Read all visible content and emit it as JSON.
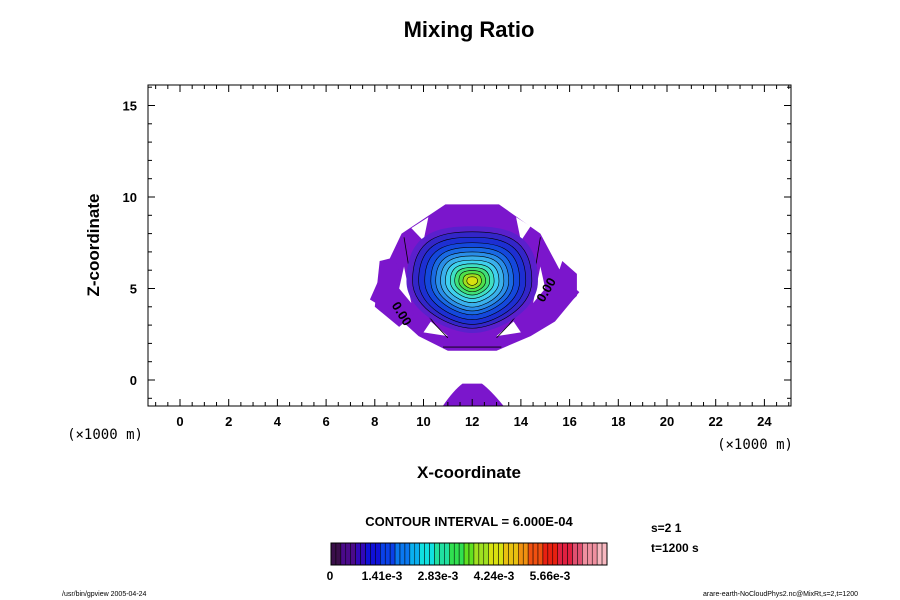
{
  "chart_data": {
    "type": "contour",
    "title": "Mixing Ratio",
    "xlabel": "X-coordinate",
    "ylabel": "Z-coordinate",
    "x_unit": "(×1000 m)",
    "y_unit": "(×1000 m)",
    "xlim": [
      -1.5,
      25
    ],
    "ylim": [
      -1.4,
      16.2
    ],
    "xticks": [
      "0",
      "2",
      "4",
      "6",
      "8",
      "10",
      "12",
      "14",
      "16",
      "18",
      "20",
      "22",
      "24"
    ],
    "yticks": [
      "0",
      "5",
      "10",
      "15"
    ],
    "contour_interval": "CONTOUR INTERVAL = 6.000E-04",
    "colorbar_labels": [
      "0",
      "1.41e-3",
      "2.83e-3",
      "4.24e-3",
      "5.66e-3"
    ],
    "contour_labels": [
      "0.00",
      "0.00"
    ],
    "blob": {
      "center_x": 12,
      "center_z": 5.4,
      "max_value": 0.0034
    },
    "colors": {
      "purple": "#7b16cc",
      "blue": "#1a2ccf",
      "cyan": "#3fd8ee",
      "green": "#3fe06a",
      "yellow": "#d8e010"
    }
  },
  "meta_labels": {
    "s": "s=2 1",
    "t": "t=1200 s",
    "footer_left": "/usr/bin/gpview 2005-04-24",
    "footer_right": "arare-earth-NoCloudPhys2.nc@MixRt,s=2,t=1200"
  }
}
